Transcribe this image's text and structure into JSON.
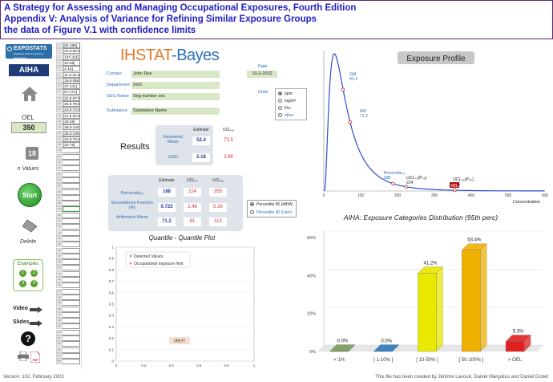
{
  "header": {
    "line1": "A Strategy for Assessing and Managing Occupational Exposures, Fourth Edition",
    "line2": "Appendix V: Analysis of Variance for Refining Similar Exposure Groups",
    "line3": "the data of Figure V.1 with confidence limits"
  },
  "sidebar": {
    "expostats": "EXPOSTATS",
    "expostats_sub": "Statistical tools for exposure assessment",
    "aiha": "AIHA",
    "oel_label": "OEL",
    "oel_value": "350",
    "n_values_count": "18",
    "n_values_label": "n Values",
    "start_label": "Start",
    "delete_label": "Delete",
    "examples_label": "Examples",
    "examples": [
      "1",
      "2",
      "3",
      "4"
    ],
    "video_label": "Video",
    "slides_label": "Slides",
    "help_label": "?",
    "print_label": "",
    "pdf_label": "PDF"
  },
  "data_column": [
    "[62-186]",
    "[31.5-94.5]",
    "[137-411]",
    "[22-66]",
    "[4-12]",
    "[11.5-34.5]",
    "[19.5-358.5]",
    "[47-141]",
    "[57-171]",
    "[22.5-67.5]",
    "[26.5-79.5]",
    "[23.5-70.5]",
    "[21.5-64.5]",
    "[16-48]",
    "[48.5-145.5]",
    "[36.5-109.5]",
    "[24.5-73.5]",
    "[24-72]",
    "",
    "",
    "",
    "",
    "",
    "",
    "",
    "",
    "",
    "",
    "",
    "",
    "",
    "",
    "",
    "",
    "",
    "",
    "",
    "",
    "",
    "",
    "",
    "",
    "",
    "",
    "",
    "",
    "",
    "",
    "",
    "",
    "",
    "",
    "",
    "",
    ""
  ],
  "brand": {
    "ihstat": "IHSTAT",
    "bayes": "-Bayes"
  },
  "form": {
    "contact_label": "Contact",
    "contact_value": "John Doe",
    "department_label": "Department",
    "department_value": "XXX",
    "seg_label": "SEG Name",
    "seg_value": "Seg number xxx",
    "substance_label": "Substance",
    "substance_value": "Substance Name",
    "date_label": "Date",
    "date_value": "10-2-2022",
    "units_label": "Units",
    "units": [
      "ppm",
      "mg/m³",
      "f/cc",
      "other"
    ]
  },
  "results": {
    "title": "Results",
    "col_estimate": "Estimate",
    "col_ucl": "UCL₉₅",
    "gm_label": "Geometric Mean",
    "gm_est": "52.4",
    "gm_ucl": "73.5",
    "gsd_label": "GSD",
    "gsd_est": "2.18",
    "gsd_ucl": "2.96"
  },
  "percentiles": {
    "col_estimate": "Estimate",
    "col_ucl70": "UCL₇₀",
    "col_ucl95": "UCL₉₅",
    "p95_label": "Percentile₉₅",
    "p95_est": "188",
    "p95_ucl70": "224",
    "p95_ucl95": "355",
    "exc_label": "Exceedance Fraction (%)",
    "exc_est": "0.723",
    "exc_ucl70": "1.48",
    "exc_ucl95": "5.16",
    "am_label": "Arithmetic Mean",
    "am_est": "71.2",
    "am_ucl70": "81",
    "am_ucl95": "113",
    "options": [
      "Percentile 95 (AIHA)",
      "Percentile 90 (User)"
    ]
  },
  "qq_plot": {
    "title": "Quantile - Quantile Plot",
    "legend_detected": "Detected Values",
    "legend_oel": "Occupational exposure limit",
    "error_label": "#REF!",
    "y_ticks": [
      "1",
      "0.9",
      "0.8",
      "0.7",
      "0.6",
      "0.5",
      "0.4",
      "0.3",
      "0.2",
      "0.1",
      "0"
    ],
    "x_ticks": [
      "0",
      "0.2",
      "0.4",
      "0.6",
      "0.8",
      "1"
    ]
  },
  "chart_data": [
    {
      "type": "line",
      "title": "Exposure Profile",
      "xlabel": "Concentration",
      "ylabel": "",
      "xlim": [
        0,
        600
      ],
      "x_ticks": [
        "0",
        "100",
        "200",
        "300",
        "400",
        "500",
        "600"
      ],
      "annotations": [
        {
          "label": "GM",
          "value_label": "52.4",
          "x": 52.4
        },
        {
          "label": "AM",
          "value_label": "71.2",
          "x": 71.2
        },
        {
          "label": "Percentile₉₅",
          "value_label": "188",
          "x": 188
        },
        {
          "label": "UCL₇₀(P₉₅)",
          "value_label": "224",
          "x": 224
        },
        {
          "label": "UCL₉₅(P₉₅)",
          "value_label": "355",
          "x": 355
        },
        {
          "label": "OEL",
          "value_label": "",
          "x": 350
        }
      ],
      "distribution": {
        "gm": 52.4,
        "gsd": 2.18
      },
      "color": "#2d4ec9"
    },
    {
      "type": "bar",
      "title": "AIHA: Exposure Categories Distribution (95th perc)",
      "categories": [
        "< 1%",
        "[ 1-10% ]",
        "[ 10-50% ]",
        "[ 50-100% ]",
        "> OEL"
      ],
      "values": [
        0.0,
        0.0,
        41.2,
        53.4,
        5.3
      ],
      "data_labels": [
        "0.0%",
        "0.0%",
        "41.2%",
        "53.4%",
        "5.3%"
      ],
      "ylim": [
        0,
        60
      ],
      "y_ticks": [
        "0%",
        "20%",
        "40%",
        "60%"
      ],
      "colors": [
        "#7a9a5a",
        "#2a7abf",
        "#e8e800",
        "#f0b000",
        "#e02020"
      ]
    }
  ],
  "footer": {
    "version": "Version: 102, February 2023",
    "credits": "This file has been created by Jérôme Lavoué, Daniel Margulius and Daniel Drolet"
  }
}
